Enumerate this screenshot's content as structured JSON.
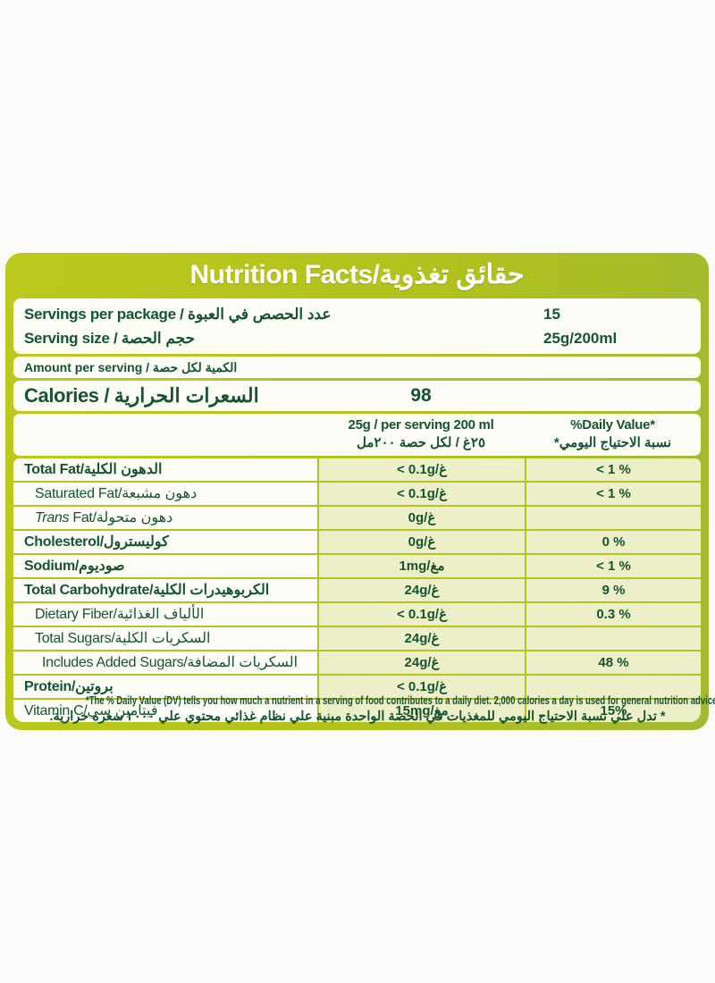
{
  "colors": {
    "label_green": "#b2c11c",
    "pale_cell_green": "#edefc9",
    "text_dark_green": "#155432",
    "panel_white": "#fdfdf7"
  },
  "header": {
    "title": "Nutrition Facts/حقائق تغذوية"
  },
  "serving_info": {
    "rows": [
      {
        "label": "Servings per package / عدد الحصص في العبوة",
        "value": "15"
      },
      {
        "label": "Serving size / حجم الحصة",
        "value": "25g/200ml"
      }
    ]
  },
  "amount_per_serving": {
    "label": "Amount per serving / الكمية لكل حصة"
  },
  "calories": {
    "label": "Calories / السعرات الحرارية",
    "value": "98"
  },
  "columns": {
    "amount_en": "25g / per serving 200 ml",
    "amount_ar": "٢٥غ / لكل حصة ٢٠٠مل",
    "dv_en": "%Daily Value*",
    "dv_ar": "نسبة الاحتياج اليومي*"
  },
  "nutrients": {
    "rows": [
      {
        "label": "Total Fat/الدهون الكلية",
        "amount": "< 0.1g/غ",
        "dv": "< 1 %"
      },
      {
        "label": "Saturated Fat/دهون مشبعة",
        "amount": "< 0.1g/غ",
        "dv": "< 1 %"
      },
      {
        "label_italic": "Trans",
        "label": " Fat/دهون متحولة",
        "amount": "0g/غ",
        "dv": ""
      },
      {
        "label": "Cholesterol/كوليسترول",
        "amount": "0g/غ",
        "dv": "0 %"
      },
      {
        "label": "Sodium/صوديوم",
        "amount": "1mg/مغ",
        "dv": "< 1 %"
      },
      {
        "label": "Total Carbohydrate/الكربوهيدرات الكلية",
        "amount": "24g/غ",
        "dv": "9 %"
      },
      {
        "label": "Dietary Fiber/الألياف الغذائية",
        "amount": "< 0.1g/غ",
        "dv": "0.3 %"
      },
      {
        "label": "Total Sugars/السكريات الكلية",
        "amount": "24g/غ",
        "dv": ""
      },
      {
        "label": "Includes Added Sugars/السكريات المضافة",
        "amount": "24g/غ",
        "dv": "48 %"
      },
      {
        "label": "Protein/بروتين",
        "amount": "< 0.1g/غ",
        "dv": ""
      },
      {
        "label": "Vitamin C/فيتامين سي",
        "amount": "15mg/مغ",
        "dv": "15%"
      }
    ]
  },
  "footnotes": {
    "en": "*The % Daily Value (DV) tells you how much a nutrient in a serving of food contributes to a daily diet. 2,000 calories a day is used for general nutrition advice.",
    "ar": "* تدل علي نسبة الاحتياج اليومي للمغذيات في الحصة الواحدة مبنية علي نظام غذائي محتوي علي ٢٠٠٠ سعره حرارية."
  }
}
